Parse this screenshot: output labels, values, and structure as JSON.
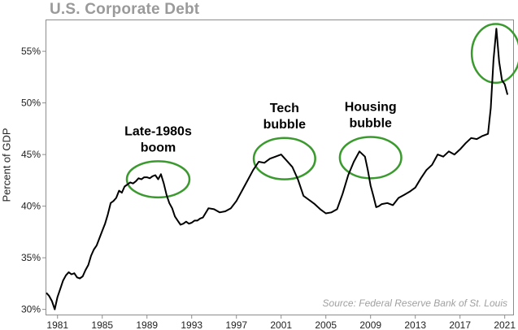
{
  "chart_data": {
    "type": "line",
    "title": "U.S. Corporate Debt",
    "xlabel": "",
    "ylabel": "Percent of GDP",
    "xlim": [
      1980,
      2021.75
    ],
    "ylim": [
      29.5,
      58
    ],
    "grid": false,
    "x_ticks": [
      1981,
      1985,
      1989,
      1993,
      1997,
      2001,
      2005,
      2009,
      2013,
      2017,
      2021
    ],
    "y_ticks": [
      30,
      35,
      40,
      45,
      50,
      55
    ],
    "y_tick_labels": [
      "30%",
      "35%",
      "40%",
      "45%",
      "50%",
      "55%"
    ],
    "source": "Source: Federal Reserve Bank of St. Louis",
    "colors": {
      "line": "#000000",
      "highlight_circle": "#3a9a2e",
      "title": "#9a9a9a",
      "source": "#a0a0a0"
    },
    "series": [
      {
        "x": [
          1980.0,
          1980.25,
          1980.5,
          1980.75,
          1981.0,
          1981.25,
          1981.5,
          1981.75,
          1982.0,
          1982.25,
          1982.5,
          1982.75,
          1983.0,
          1983.25,
          1983.5,
          1983.75,
          1984.0,
          1984.25,
          1984.5,
          1984.75,
          1985.0,
          1985.25,
          1985.5,
          1985.75,
          1986.0,
          1986.25,
          1986.5,
          1986.75,
          1987.0,
          1987.25,
          1987.5,
          1987.75,
          1988.0,
          1988.25,
          1988.5,
          1988.75,
          1989.0,
          1989.25,
          1989.5,
          1989.75,
          1990.0,
          1990.25,
          1990.5,
          1990.75,
          1991.0,
          1991.25,
          1991.5,
          1991.75,
          1992.0,
          1992.25,
          1992.5,
          1992.75,
          1993.0,
          1993.25,
          1993.5,
          1993.75,
          1994.0,
          1994.5,
          1995.0,
          1995.5,
          1996.0,
          1996.5,
          1997.0,
          1997.5,
          1998.0,
          1998.5,
          1999.0,
          1999.5,
          2000.0,
          2000.5,
          2001.0,
          2001.5,
          2002.0,
          2002.5,
          2003.0,
          2003.5,
          2004.0,
          2004.5,
          2005.0,
          2005.5,
          2006.0,
          2006.5,
          2007.0,
          2007.5,
          2008.0,
          2008.5,
          2008.75,
          2009.0,
          2009.25,
          2009.5,
          2009.75,
          2010.0,
          2010.5,
          2011.0,
          2011.5,
          2012.0,
          2012.5,
          2013.0,
          2013.5,
          2014.0,
          2014.5,
          2015.0,
          2015.5,
          2016.0,
          2016.5,
          2017.0,
          2017.5,
          2018.0,
          2018.5,
          2019.0,
          2019.5,
          2019.75,
          2020.0,
          2020.25,
          2020.5,
          2020.75,
          2021.0,
          2021.25
        ],
        "y": [
          31.6,
          31.3,
          30.8,
          30.0,
          31.2,
          32.0,
          32.8,
          33.3,
          33.6,
          33.4,
          33.5,
          33.1,
          33.0,
          33.2,
          33.8,
          34.3,
          35.2,
          35.8,
          36.2,
          36.9,
          37.6,
          38.3,
          39.2,
          40.3,
          40.5,
          40.8,
          41.5,
          41.3,
          41.9,
          42.1,
          42.3,
          42.2,
          42.4,
          42.7,
          42.6,
          42.8,
          42.8,
          42.7,
          42.9,
          43.0,
          42.6,
          43.1,
          42.2,
          41.1,
          40.3,
          39.8,
          39.0,
          38.6,
          38.2,
          38.3,
          38.5,
          38.3,
          38.4,
          38.6,
          38.6,
          38.8,
          38.9,
          39.8,
          39.7,
          39.4,
          39.5,
          39.8,
          40.5,
          41.5,
          42.5,
          43.5,
          44.3,
          44.2,
          44.6,
          44.8,
          45.0,
          44.4,
          43.8,
          42.6,
          41.0,
          40.6,
          40.2,
          39.7,
          39.3,
          39.4,
          39.7,
          41.2,
          43.0,
          44.3,
          45.3,
          44.8,
          43.5,
          42.0,
          41.0,
          39.9,
          40.0,
          40.2,
          40.3,
          40.1,
          40.8,
          41.1,
          41.4,
          41.8,
          42.7,
          43.5,
          44.0,
          45.0,
          44.8,
          45.3,
          45.0,
          45.5,
          46.1,
          46.6,
          46.5,
          46.8,
          47.0,
          49.5,
          54.2,
          57.2,
          54.0,
          52.2,
          51.8,
          50.8
        ]
      }
    ],
    "annotations": [
      {
        "lines": [
          "Late-1980s",
          "boom"
        ],
        "circle": {
          "center": [
            1990.0,
            42.6
          ],
          "radii": [
            2.8,
            1.75
          ]
        }
      },
      {
        "lines": [
          "Tech",
          "bubble"
        ],
        "circle": {
          "center": [
            2001.3,
            44.6
          ],
          "radii": [
            2.75,
            2.0
          ]
        }
      },
      {
        "lines": [
          "Housing",
          "bubble"
        ],
        "circle": {
          "center": [
            2009.0,
            44.7
          ],
          "radii": [
            2.75,
            2.0
          ]
        }
      },
      {
        "lines": [],
        "circle": {
          "center": [
            2020.2,
            54.8
          ],
          "radii": [
            2.15,
            2.85
          ]
        }
      }
    ]
  }
}
